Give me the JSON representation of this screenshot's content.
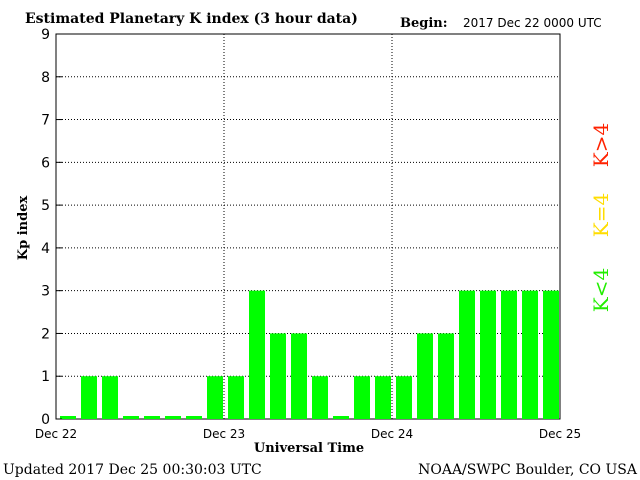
{
  "chart_data": {
    "type": "bar",
    "title": "Estimated Planetary K index (3 hour data)",
    "begin_label": "Begin:",
    "begin_value": "2017 Dec 22 0000 UTC",
    "xlabel": "Universal Time",
    "ylabel": "Kp index",
    "ylim": [
      0,
      9
    ],
    "yticks": [
      "0",
      "1",
      "2",
      "3",
      "4",
      "5",
      "6",
      "7",
      "8",
      "9"
    ],
    "xticks": [
      "Dec 22",
      "Dec 23",
      "Dec 24",
      "Dec 25"
    ],
    "grid": true,
    "values": [
      0,
      1,
      1,
      0,
      0,
      0,
      0,
      1,
      1,
      3,
      2,
      2,
      1,
      0,
      1,
      1,
      1,
      2,
      2,
      3,
      3,
      3,
      3,
      3
    ],
    "bar_color": "#00ff00",
    "legend": [
      {
        "label": "K>4",
        "color": "#ff2200"
      },
      {
        "label": "K=4",
        "color": "#ffdd00"
      },
      {
        "label": "K<4",
        "color": "#22ee00"
      }
    ],
    "legend_placement": "right"
  },
  "footer": {
    "updated": "Updated 2017 Dec 25 00:30:03 UTC",
    "source": "NOAA/SWPC Boulder, CO USA"
  }
}
